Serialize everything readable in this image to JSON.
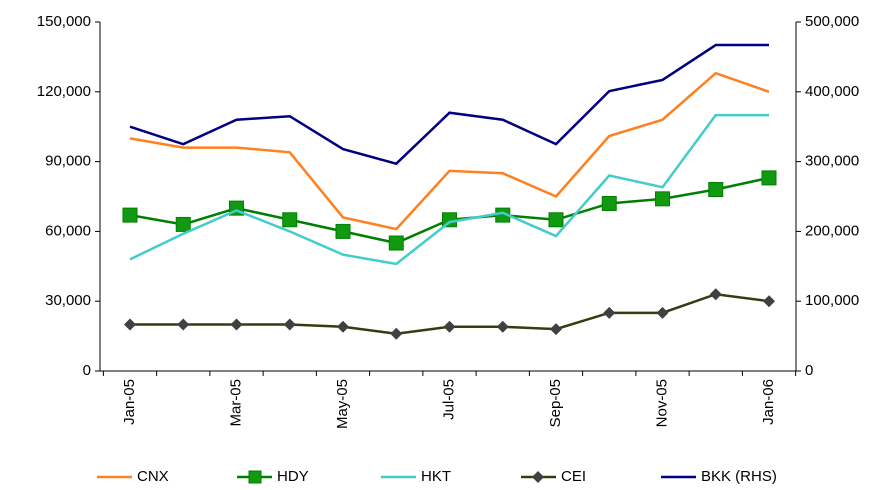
{
  "chart_data": {
    "type": "line",
    "categories": [
      "Jan-05",
      null,
      "Mar-05",
      null,
      "May-05",
      null,
      "Jul-05",
      null,
      "Sep-05",
      null,
      "Nov-05",
      null,
      "Jan-06"
    ],
    "series": [
      {
        "name": "CNX",
        "color": "#ff8020",
        "values": [
          100000,
          96000,
          96000,
          94000,
          66000,
          61000,
          86000,
          85000,
          75000,
          101000,
          108000,
          128000,
          120000
        ]
      },
      {
        "name": "HDY",
        "color": "#008000",
        "marker": "square",
        "marker_color": "#119911",
        "values": [
          67000,
          63000,
          70000,
          65000,
          60000,
          55000,
          65000,
          67000,
          65000,
          72000,
          74000,
          78000,
          83000
        ]
      },
      {
        "name": "HKT",
        "color": "#44cccc",
        "values": [
          48000,
          59000,
          69000,
          60000,
          50000,
          46000,
          64000,
          68000,
          58000,
          84000,
          79000,
          110000,
          110000
        ]
      },
      {
        "name": "CEI",
        "color": "#3a3a10",
        "marker": "diamond",
        "marker_color": "#404040",
        "values": [
          20000,
          20000,
          20000,
          20000,
          19000,
          16000,
          19000,
          19000,
          18000,
          25000,
          25000,
          33000,
          30000
        ]
      },
      {
        "name": "BKK (RHS)",
        "color": "#000080",
        "axis": "y2",
        "values": [
          350000,
          325000,
          360000,
          365000,
          318000,
          297000,
          370000,
          360000,
          325000,
          401000,
          417000,
          467000,
          467000
        ]
      }
    ],
    "ylim": [
      0,
      150000
    ],
    "yticks": [
      0,
      {
        "value": 30000,
        "label": "30,000"
      },
      {
        "value": 60000,
        "label": "60,000"
      },
      {
        "value": 90000,
        "label": "90,000"
      },
      {
        "value": 120000,
        "label": "120,000"
      },
      {
        "value": 150000,
        "label": "150,000"
      }
    ],
    "y2lim": [
      0,
      500000
    ],
    "y2ticks": [
      0,
      {
        "value": 100000,
        "label": "100,000"
      },
      {
        "value": 200000,
        "label": "200,000"
      },
      {
        "value": 300000,
        "label": "300,000"
      },
      {
        "value": 400000,
        "label": "400,000"
      },
      {
        "value": 500000,
        "label": "500,000"
      }
    ],
    "legend": "bottom"
  }
}
